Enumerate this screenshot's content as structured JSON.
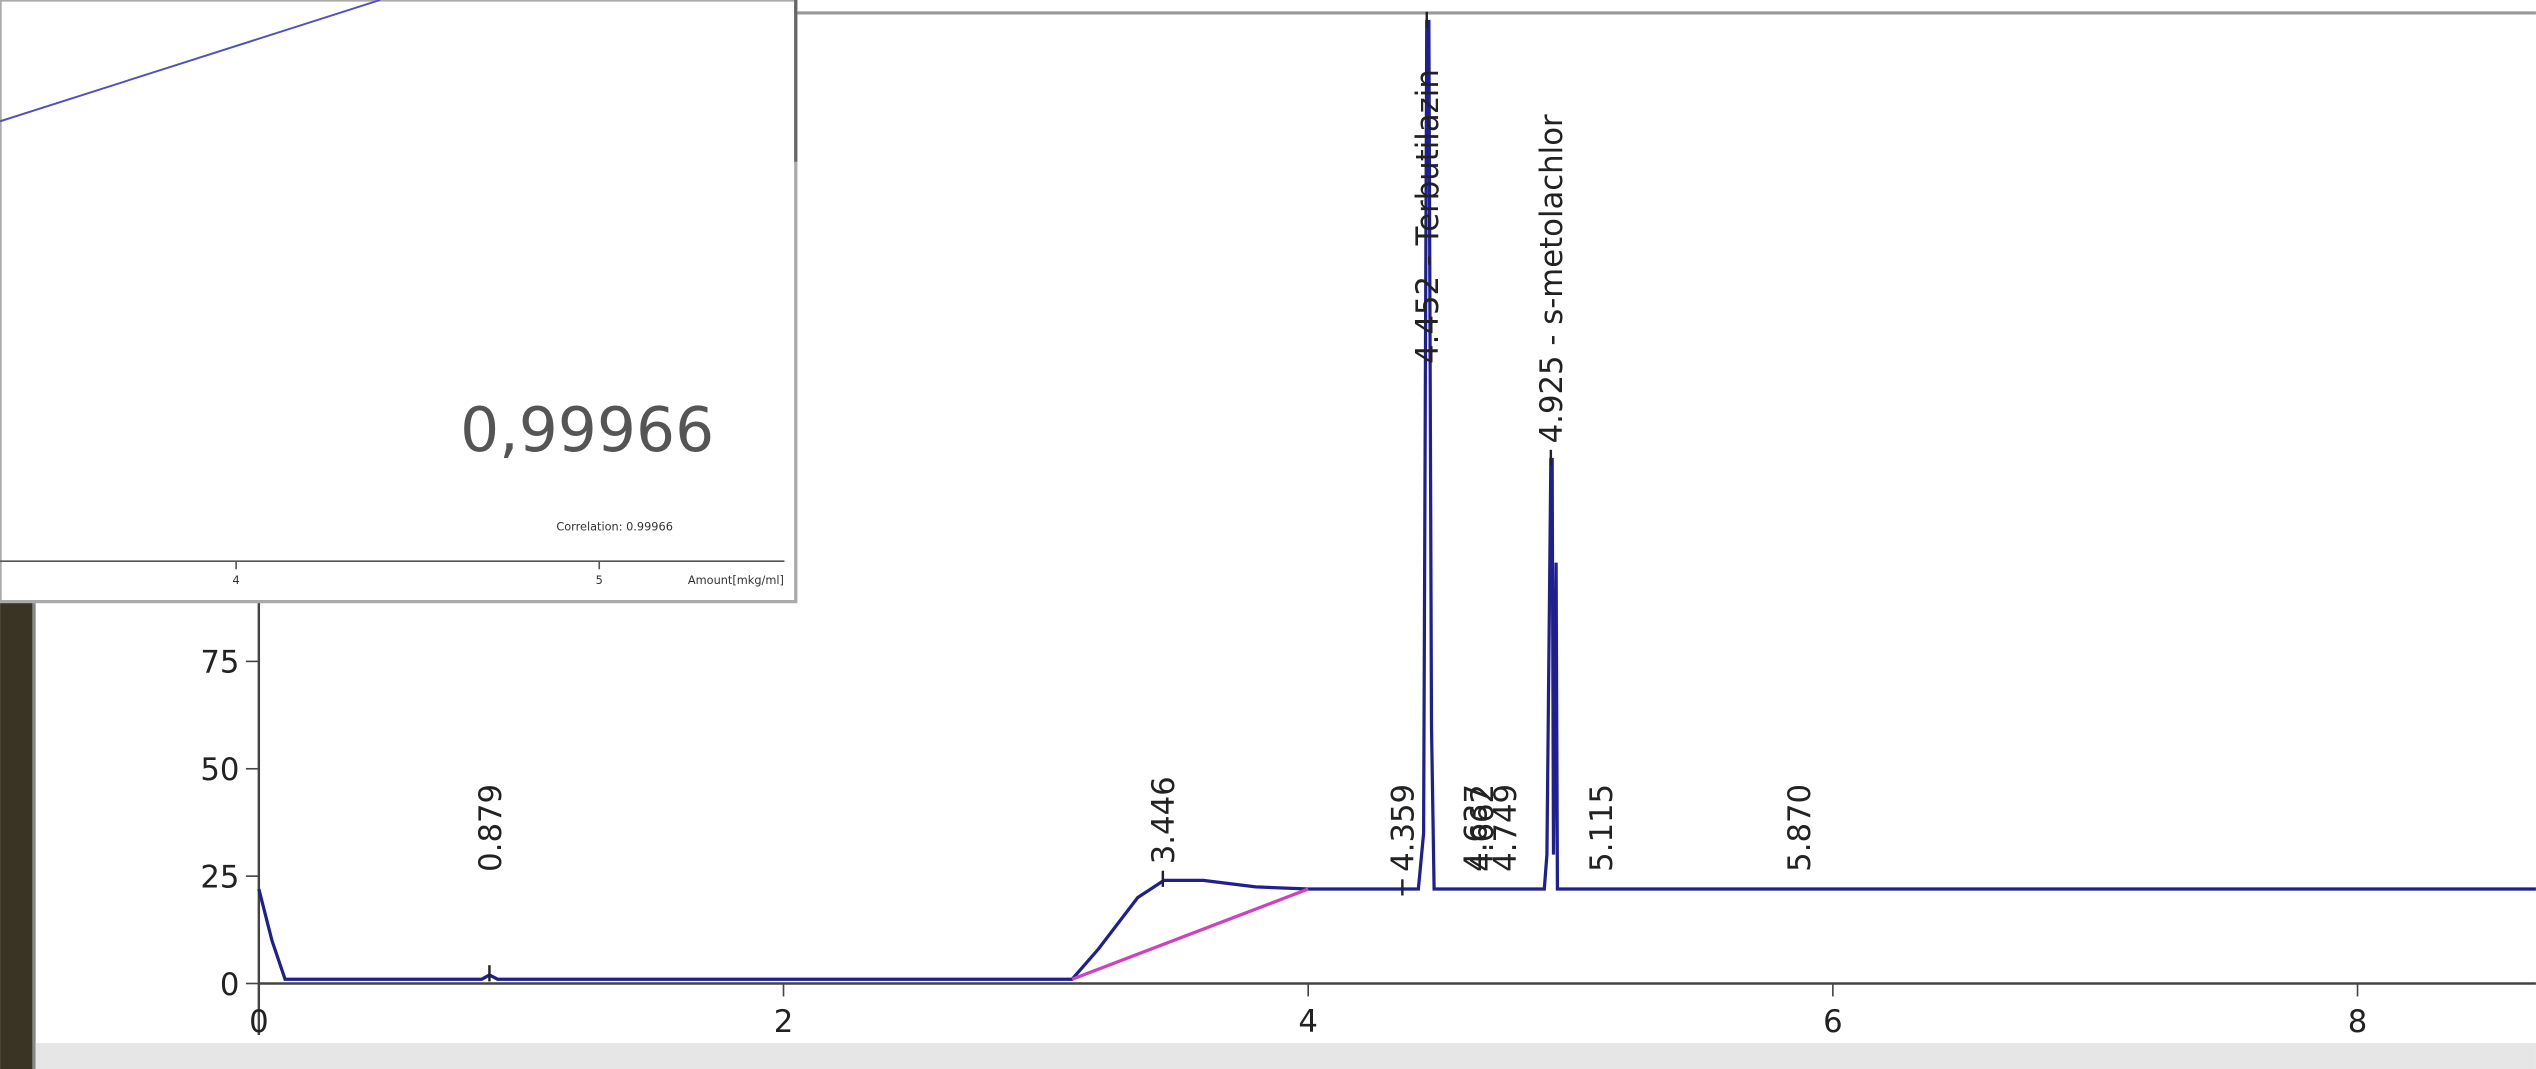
{
  "chart_data": [
    {
      "type": "line",
      "xlim": [
        0,
        8.68
      ],
      "ylim": [
        -12,
        229
      ],
      "xticks": [
        0,
        2,
        4,
        6,
        8
      ],
      "yticks": [
        0,
        25,
        50,
        75
      ],
      "series": [
        {
          "color": "#1f1f8f",
          "x": [
            0,
            0.05,
            0.1,
            0.85,
            0.879,
            0.91,
            3.1,
            3.2,
            3.35,
            3.45,
            3.6,
            3.8,
            4.0,
            4.35,
            4.42,
            4.44,
            4.452,
            4.46,
            4.47,
            4.48,
            4.9,
            4.91,
            4.925,
            4.93,
            4.935,
            4.945,
            4.95,
            8.68
          ],
          "values": [
            22,
            10,
            1,
            1,
            2,
            1,
            1,
            8,
            20,
            24,
            24,
            22.5,
            22,
            22,
            22,
            35,
            224,
            224,
            60,
            22,
            22,
            30,
            122,
            122,
            30,
            98,
            22,
            22
          ]
        },
        {
          "color": "#d040c0",
          "x": [
            3.1,
            4.0
          ],
          "values": [
            1,
            22
          ]
        }
      ],
      "annotations": [
        {
          "x": 0.879,
          "label": "0.879"
        },
        {
          "x": 3.446,
          "label": "3.446"
        },
        {
          "x": 4.359,
          "label": "4.359"
        },
        {
          "x": 4.452,
          "label": "4.452 - Terbutilazin"
        },
        {
          "x": 4.637,
          "label": "4.637"
        },
        {
          "x": 4.662,
          "label": "4.662"
        },
        {
          "x": 4.749,
          "label": "4.749"
        },
        {
          "x": 4.925,
          "label": "4.925 - s-metolachlor"
        },
        {
          "x": 5.115,
          "label": "5.115"
        },
        {
          "x": 5.87,
          "label": "5.870"
        }
      ]
    },
    {
      "type": "calibration",
      "xlim": [
        3.35,
        5.51
      ],
      "xticks": [
        4,
        5
      ],
      "xlabel": "Amount[mkg/ml]",
      "note": "Correlation: 0.99966",
      "highlight": "0,99966"
    }
  ]
}
